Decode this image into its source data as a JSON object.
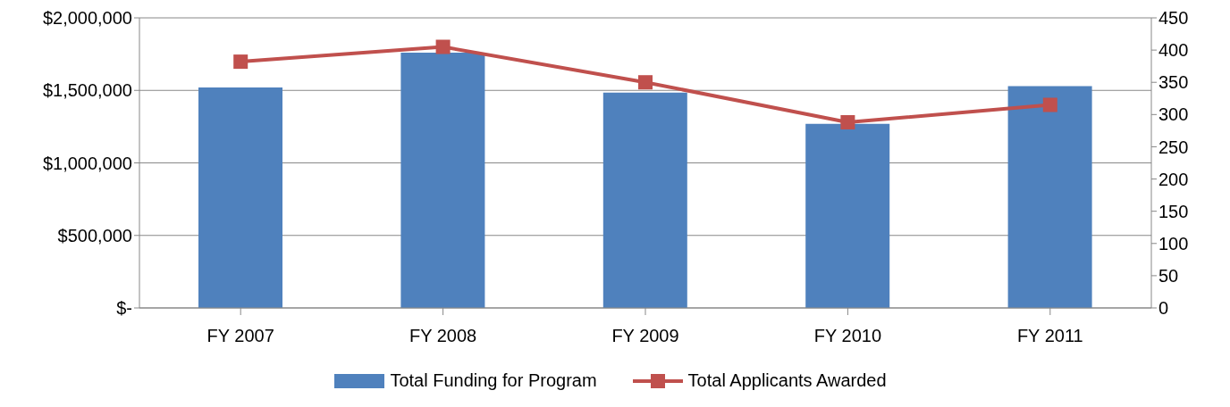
{
  "chart_data": {
    "type": "bar",
    "categories": [
      "FY 2007",
      "FY 2008",
      "FY 2009",
      "FY 2010",
      "FY 2011"
    ],
    "series": [
      {
        "name": "Total Funding for Program",
        "color": "#4f81bd",
        "values": [
          1520000,
          1760000,
          1485000,
          1270000,
          1530000
        ]
      },
      {
        "name": "Total Applicants Awarded",
        "type": "line",
        "axis": "y2",
        "color": "#c0504d",
        "values": [
          382,
          405,
          350,
          288,
          315
        ]
      }
    ],
    "ylim": [
      0,
      2000000
    ],
    "yticks": [
      {
        "value": 0,
        "label": "$-"
      },
      {
        "value": 500000,
        "label": "$500,000"
      },
      {
        "value": 1000000,
        "label": "$1,000,000"
      },
      {
        "value": 1500000,
        "label": "$1,500,000"
      },
      {
        "value": 2000000,
        "label": "$2,000,000"
      }
    ],
    "y2lim": [
      0,
      450
    ],
    "y2ticks": [
      0,
      50,
      100,
      150,
      200,
      250,
      300,
      350,
      400,
      450
    ],
    "grid": "y",
    "legend": "bottom",
    "marker": "square",
    "line_style": "solid"
  }
}
